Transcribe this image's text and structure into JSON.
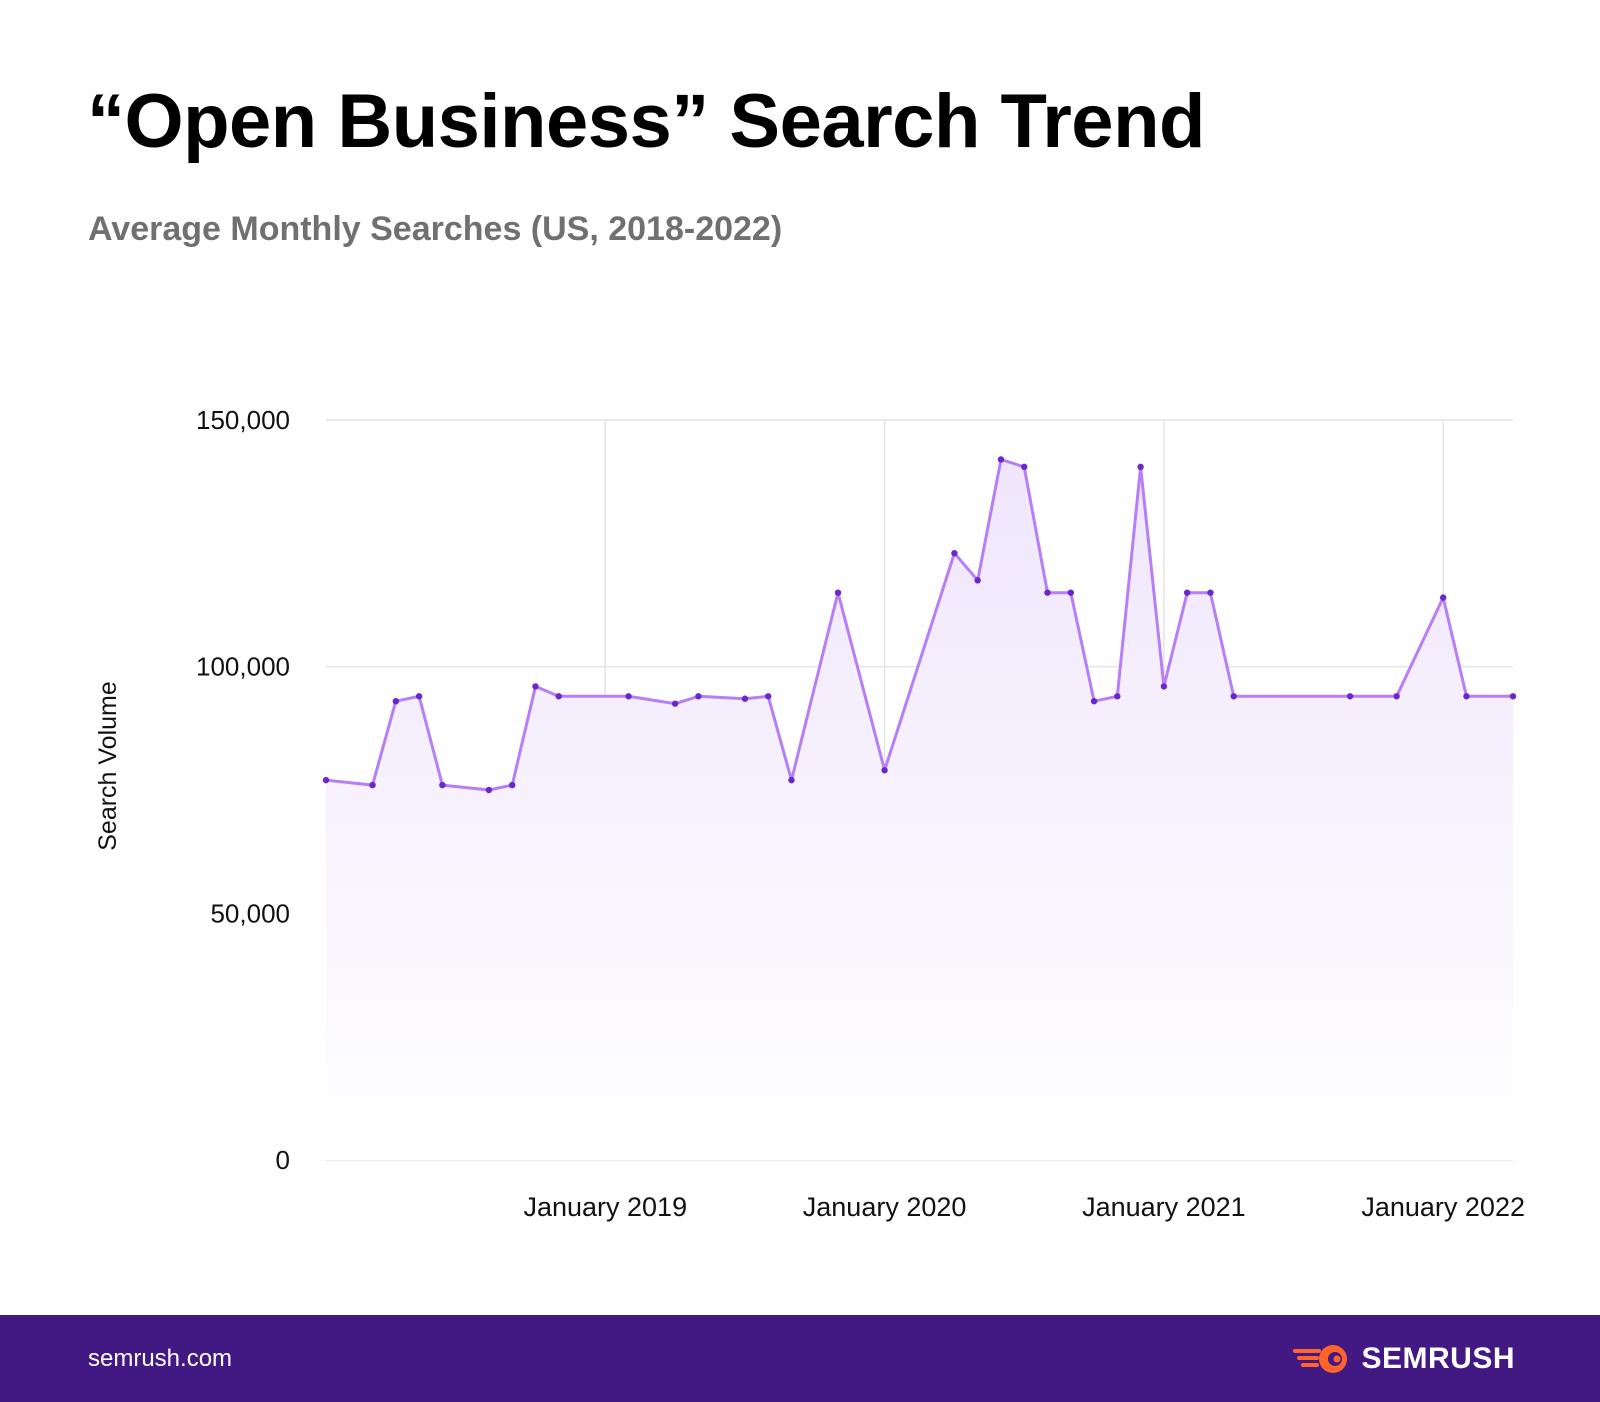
{
  "header": {
    "title": "“Open Business” Search Trend",
    "subtitle": "Average Monthly Searches (US, 2018-2022)"
  },
  "footer": {
    "url": "semrush.com",
    "brand": "SEMRUSH",
    "logo_icon": "semrush-fire-icon",
    "background": "#421983",
    "logo_color": "#ff642d"
  },
  "colors": {
    "line": "#b67ef7",
    "point": "#6a27c9",
    "area_top": "#efe6fc",
    "grid": "#e4e4e4"
  },
  "chart_data": {
    "type": "area",
    "title": "“Open Business” Search Trend",
    "subtitle": "Average Monthly Searches (US, 2018-2022)",
    "xlabel": "",
    "ylabel": "Search Volume",
    "ylim": [
      0,
      150000
    ],
    "yticks": [
      {
        "value": 0,
        "label": "0"
      },
      {
        "value": 50000,
        "label": "50,000"
      },
      {
        "value": 100000,
        "label": "100,000"
      },
      {
        "value": 150000,
        "label": "150,000"
      }
    ],
    "xlim": [
      "2018-01",
      "2022-04"
    ],
    "xticks": [
      {
        "value": "2019-01",
        "label": "January 2019"
      },
      {
        "value": "2020-01",
        "label": "January 2020"
      },
      {
        "value": "2021-01",
        "label": "January 2021"
      },
      {
        "value": "2022-01",
        "label": "January 2022"
      }
    ],
    "grid": true,
    "series": [
      {
        "points": [
          {
            "x": "2018-01",
            "y": 77000
          },
          {
            "x": "2018-03",
            "y": 76000
          },
          {
            "x": "2018-04",
            "y": 93000
          },
          {
            "x": "2018-05",
            "y": 94000
          },
          {
            "x": "2018-06",
            "y": 76000
          },
          {
            "x": "2018-08",
            "y": 75000
          },
          {
            "x": "2018-09",
            "y": 76000
          },
          {
            "x": "2018-10",
            "y": 96000
          },
          {
            "x": "2018-11",
            "y": 94000
          },
          {
            "x": "2019-02",
            "y": 94000
          },
          {
            "x": "2019-04",
            "y": 92500
          },
          {
            "x": "2019-05",
            "y": 94000
          },
          {
            "x": "2019-07",
            "y": 93500
          },
          {
            "x": "2019-08",
            "y": 94000
          },
          {
            "x": "2019-09",
            "y": 77000
          },
          {
            "x": "2019-11",
            "y": 115000
          },
          {
            "x": "2020-01",
            "y": 79000
          },
          {
            "x": "2020-04",
            "y": 123000
          },
          {
            "x": "2020-05",
            "y": 117500
          },
          {
            "x": "2020-06",
            "y": 142000
          },
          {
            "x": "2020-07",
            "y": 140500
          },
          {
            "x": "2020-08",
            "y": 115000
          },
          {
            "x": "2020-09",
            "y": 115000
          },
          {
            "x": "2020-10",
            "y": 93000
          },
          {
            "x": "2020-11",
            "y": 94000
          },
          {
            "x": "2020-12",
            "y": 140500
          },
          {
            "x": "2021-01",
            "y": 96000
          },
          {
            "x": "2021-02",
            "y": 115000
          },
          {
            "x": "2021-03",
            "y": 115000
          },
          {
            "x": "2021-04",
            "y": 94000
          },
          {
            "x": "2021-09",
            "y": 94000
          },
          {
            "x": "2021-11",
            "y": 94000
          },
          {
            "x": "2022-01",
            "y": 114000
          },
          {
            "x": "2022-02",
            "y": 94000
          },
          {
            "x": "2022-04",
            "y": 94000
          }
        ]
      }
    ]
  }
}
